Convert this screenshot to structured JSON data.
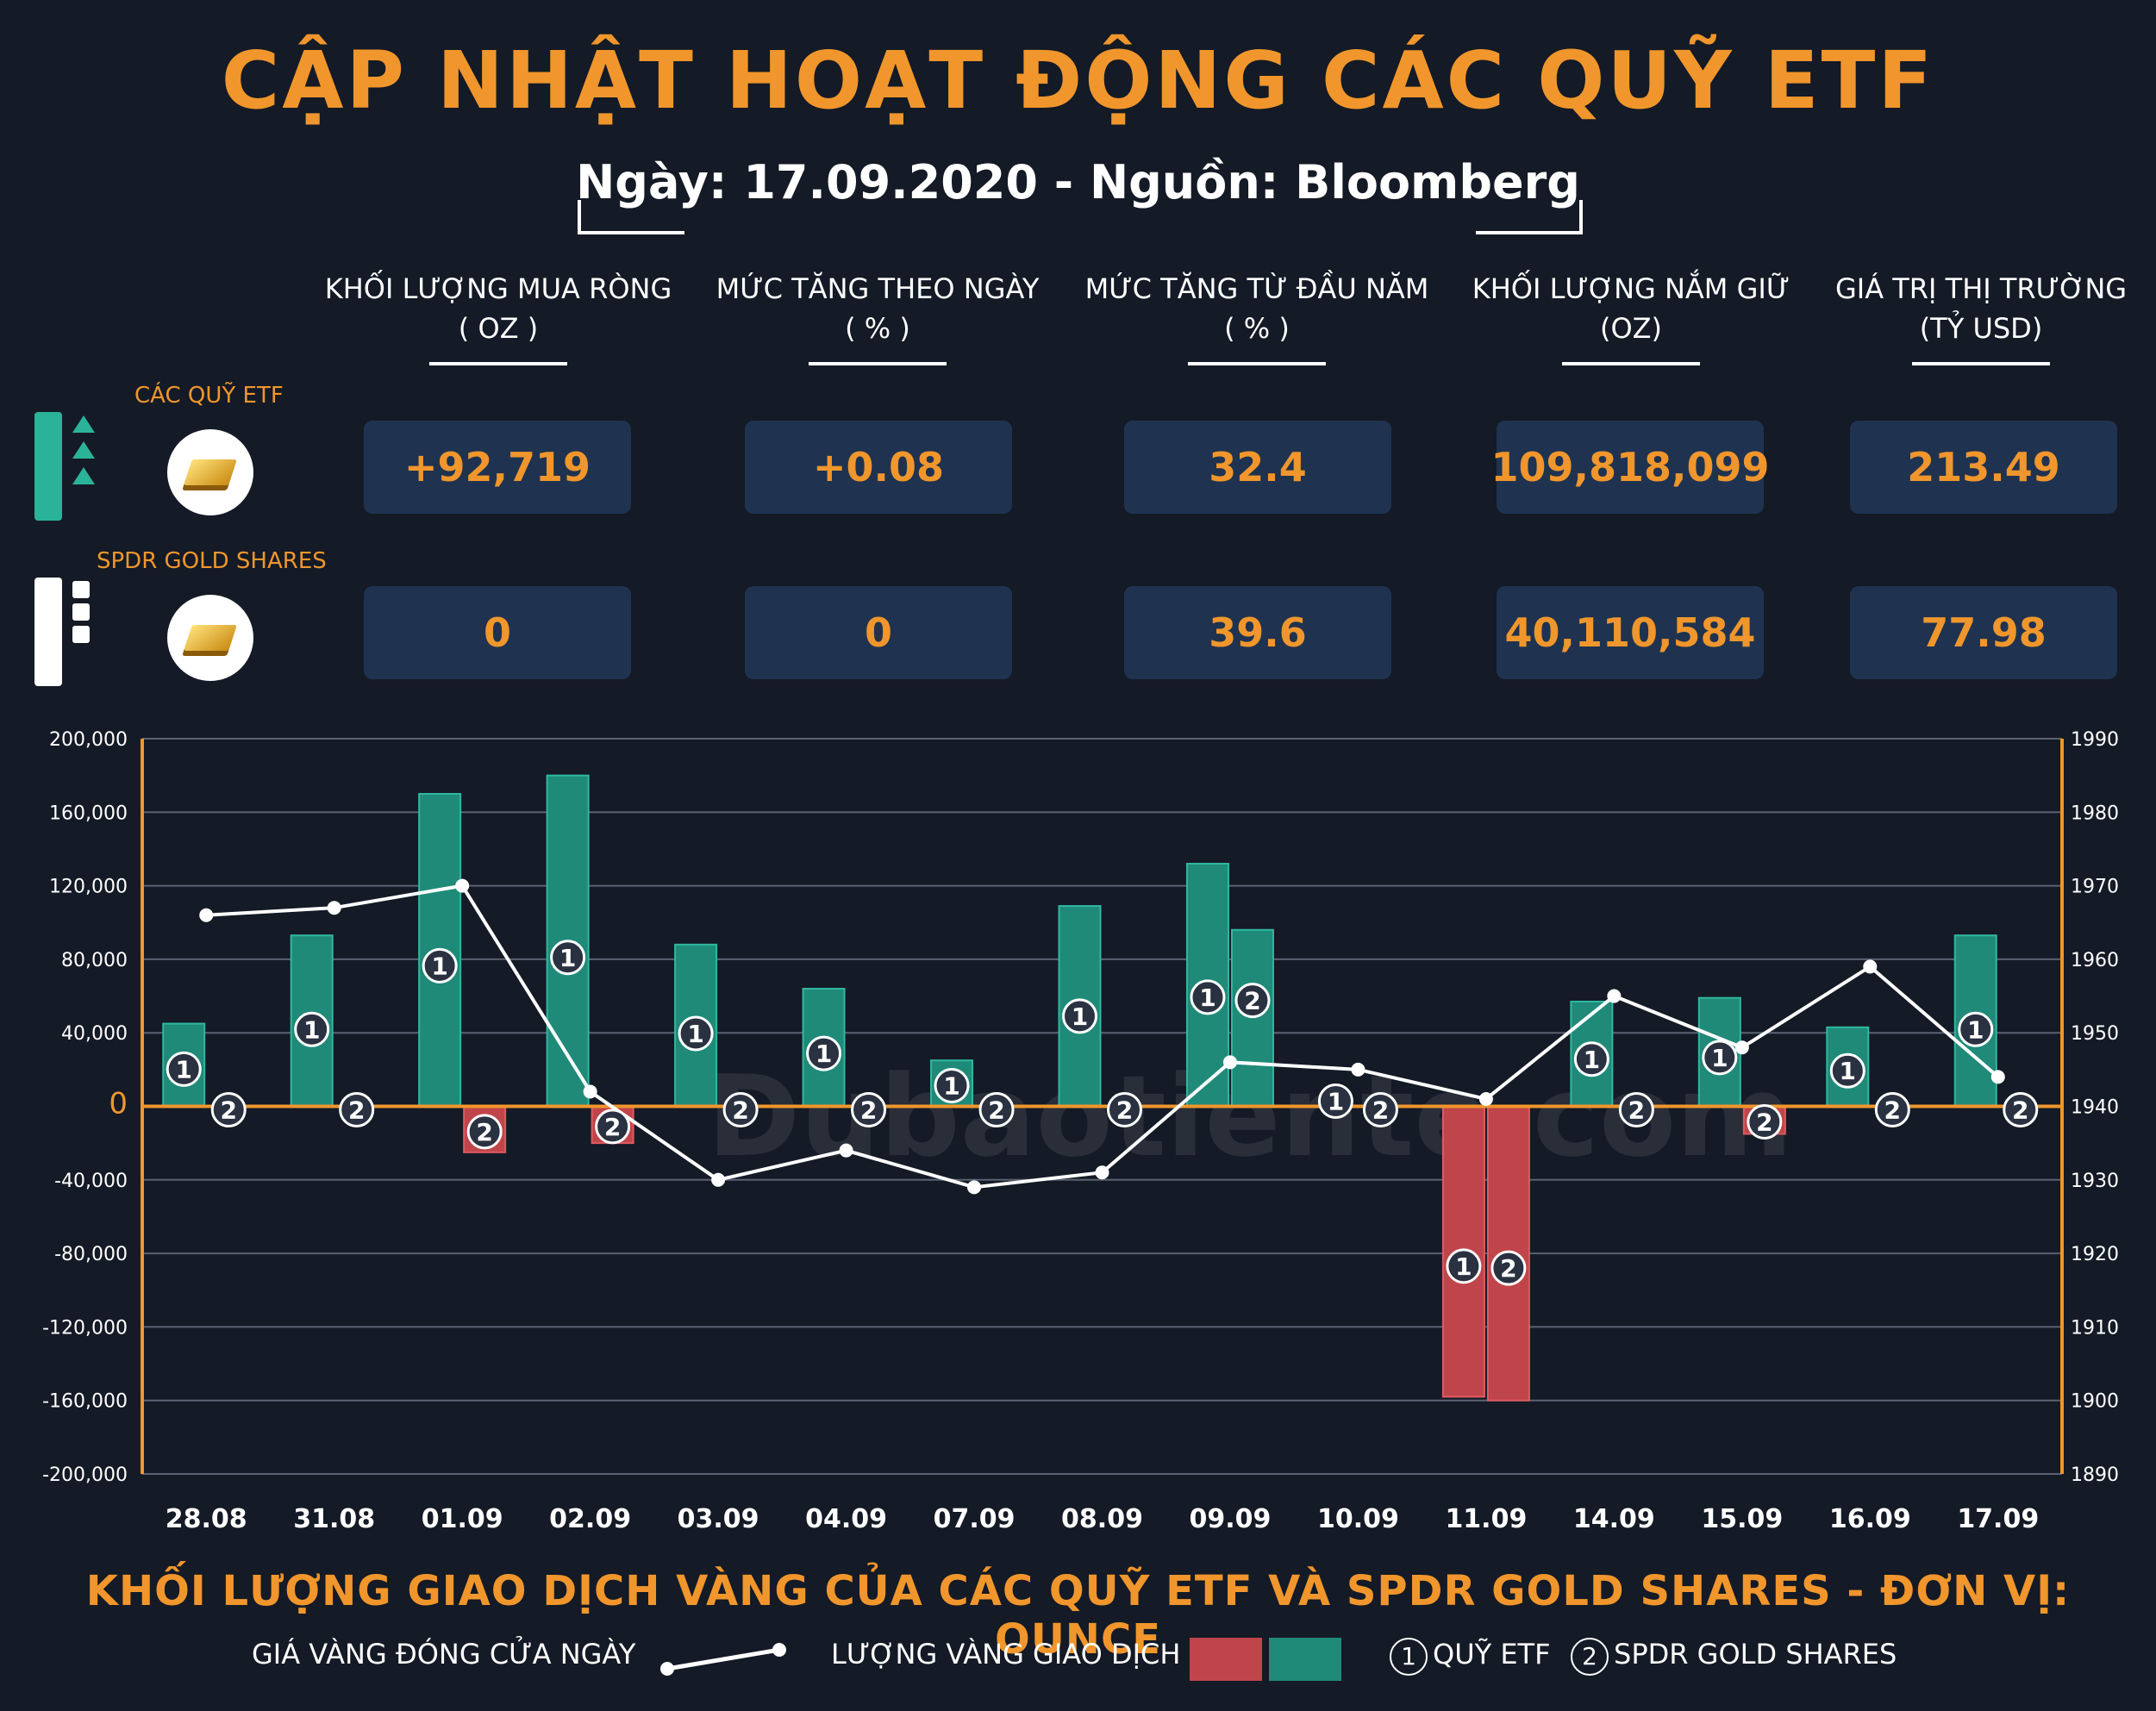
{
  "header": {
    "title": "CẬP NHẬT HOẠT ĐỘNG CÁC QUỸ ETF",
    "subtitle": "Ngày: 17.09.2020 - Nguồn: Bloomberg"
  },
  "table": {
    "columns": [
      {
        "label": "KHỐI LƯỢNG MUA RÒNG",
        "unit": "( OZ )"
      },
      {
        "label": "MỨC TĂNG THEO NGÀY",
        "unit": "( % )"
      },
      {
        "label": "MỨC TĂNG TỪ ĐẦU NĂM",
        "unit": "( % )"
      },
      {
        "label": "KHỐI LƯỢNG NẮM GIỮ",
        "unit": "(OZ)"
      },
      {
        "label": "GIÁ TRỊ THỊ TRƯỜNG",
        "unit": "(TỶ USD)"
      }
    ],
    "rows": [
      {
        "label": "CÁC QUỸ ETF",
        "values": [
          "+92,719",
          "+0.08",
          "32.4",
          "109,818,099",
          "213.49"
        ]
      },
      {
        "label": "SPDR GOLD SHARES",
        "values": [
          "0",
          "0",
          "39.6",
          "40,110,584",
          "77.98"
        ]
      }
    ]
  },
  "watermark": "Dubaotiente.com",
  "chart_data": {
    "type": "bar",
    "categories": [
      "28.08",
      "31.08",
      "01.09",
      "02.09",
      "03.09",
      "04.09",
      "07.09",
      "08.09",
      "09.09",
      "10.09",
      "11.09",
      "14.09",
      "15.09",
      "16.09",
      "17.09"
    ],
    "series": [
      {
        "name": "QUỸ ETF",
        "marker": "1",
        "values": [
          45000,
          93000,
          170000,
          180000,
          88000,
          64000,
          25000,
          109000,
          132000,
          0,
          -158000,
          57000,
          59000,
          43000,
          93000
        ]
      },
      {
        "name": "SPDR GOLD SHARES",
        "marker": "2",
        "values": [
          0,
          0,
          -25000,
          -20000,
          0,
          0,
          0,
          0,
          96000,
          0,
          -160000,
          0,
          -15000,
          0,
          0
        ]
      },
      {
        "name": "GIÁ VÀNG ĐÓNG CỬA NGÀY",
        "axis": "right",
        "type": "line",
        "values": [
          1966,
          1967,
          1970,
          1942,
          1930,
          1934,
          1929,
          1931,
          1946,
          1945,
          1941,
          1955,
          1948,
          1959,
          1944
        ]
      }
    ],
    "left_axis": {
      "ylim": [
        -200000,
        200000
      ],
      "ticks": [
        "200,000",
        "160,000",
        "120,000",
        "80,000",
        "40,000",
        "0",
        "-40,000",
        "-80,000",
        "-120,000",
        "-160,000",
        "-200,000"
      ]
    },
    "right_axis": {
      "ylim": [
        1890,
        1990
      ],
      "ticks": [
        "1990",
        "1980",
        "1970",
        "1960",
        "1950",
        "1940",
        "1930",
        "1920",
        "1910",
        "1900",
        "1890"
      ]
    },
    "colors": {
      "positive": "#1f8a78",
      "negative": "#c0454a",
      "line": "#ffffff",
      "zero": "#f0962c",
      "axis": "#f0962c",
      "grid": "#5a6272"
    },
    "grid": true,
    "title": "KHỐI LƯỢNG GIAO DỊCH VÀNG CỦA CÁC QUỸ ETF VÀ SPDR GOLD SHARES - ĐƠN VỊ: OUNCE"
  },
  "legend": {
    "line_label": "GIÁ VÀNG ĐÓNG CỬA NGÀY",
    "bars_label": "LƯỢNG VÀNG GIAO DỊCH",
    "marker1": "1",
    "marker1_label": "QUỸ ETF",
    "marker2": "2",
    "marker2_label": "SPDR GOLD SHARES"
  }
}
